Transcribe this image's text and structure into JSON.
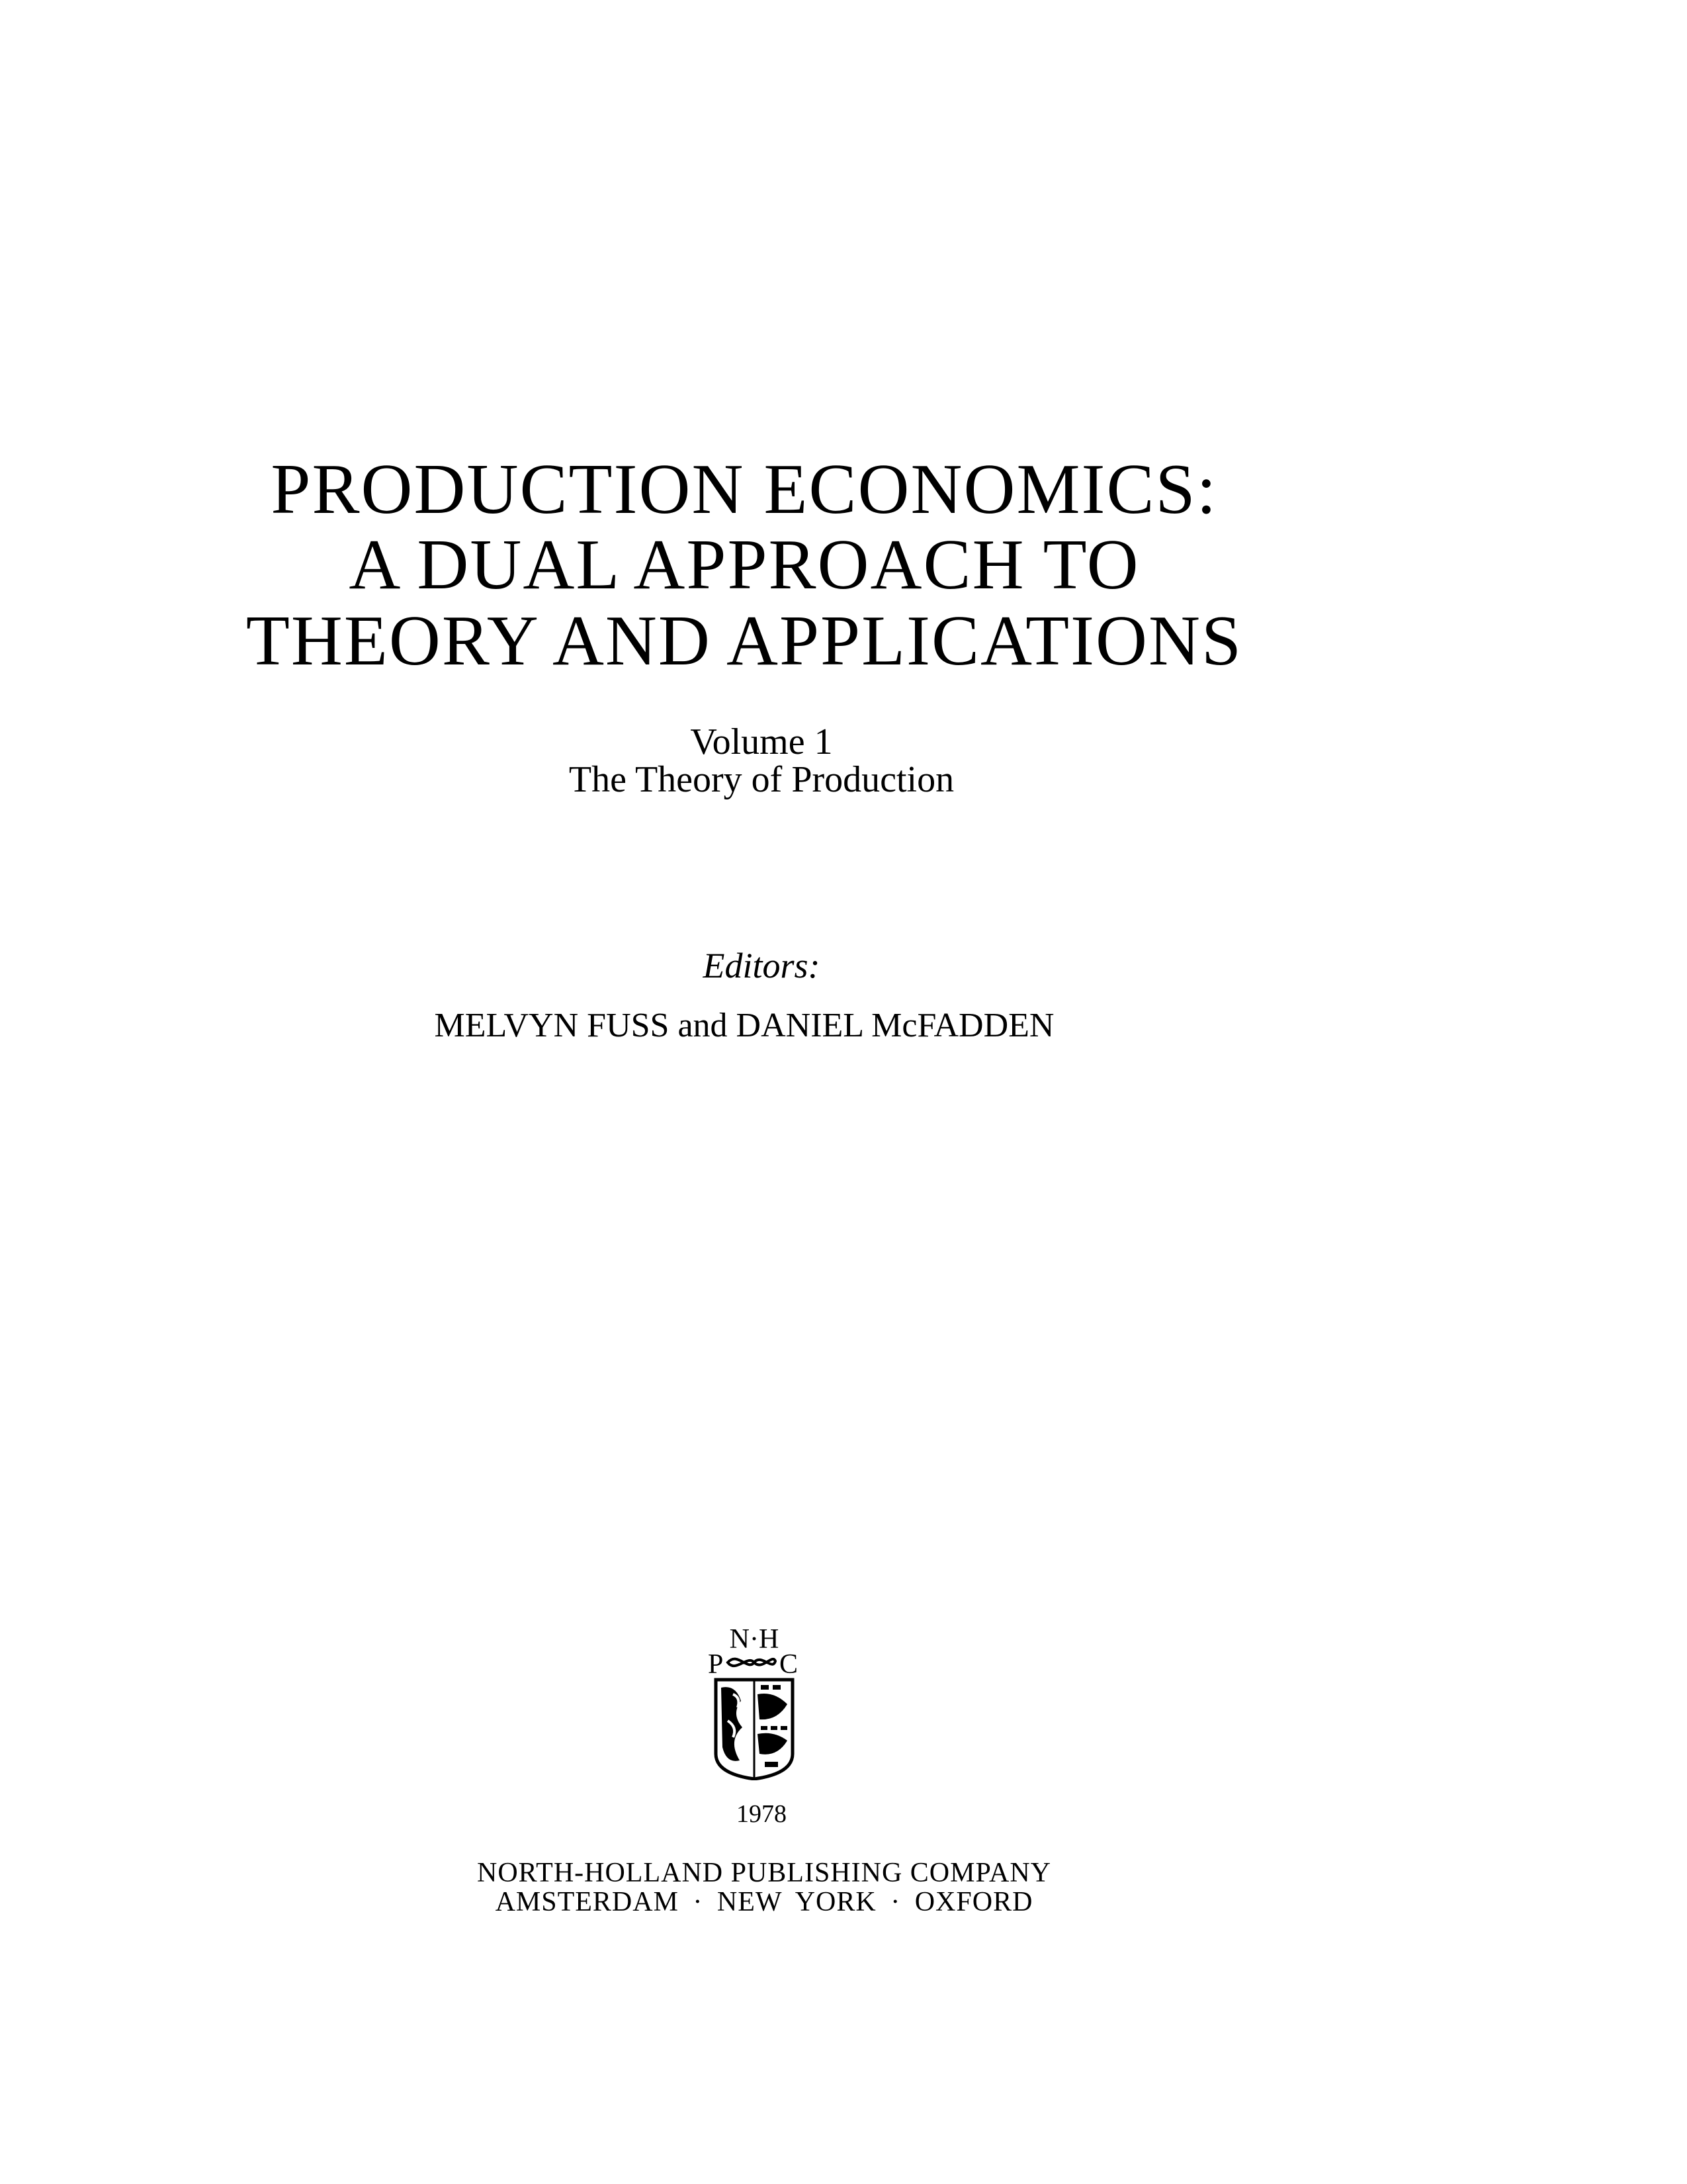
{
  "title": {
    "lines": [
      "PRODUCTION ECONOMICS:",
      "A DUAL APPROACH TO",
      "THEORY AND APPLICATIONS"
    ]
  },
  "volume": {
    "number": "Volume 1",
    "subtitle": "The Theory of Production"
  },
  "editors": {
    "label": "Editors:",
    "names": "MELVYN FUSS and DANIEL McFADDEN"
  },
  "publisher": {
    "logo_text": "N·H P&C",
    "year": "1978",
    "name": "NORTH-HOLLAND PUBLISHING COMPANY",
    "cities": "AMSTERDAM · NEW YORK · OXFORD"
  }
}
